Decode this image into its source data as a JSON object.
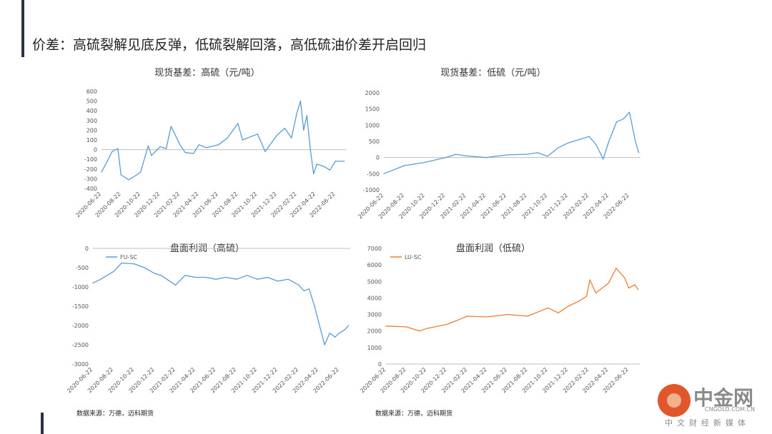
{
  "slide": {
    "title": "价差：高硫裂解见底反弹，低硫裂解回落，高低硫油价差开启回归"
  },
  "source_note": "数据来源：万德，迈科期货",
  "watermark": {
    "name": "中金网",
    "domain": "CNGOLD.COM.CN",
    "slogan": "中文财经新媒体"
  },
  "x_date_labels": [
    "2020-06-22",
    "2020-08-22",
    "2020-10-22",
    "2020-12-22",
    "2021-02-22",
    "2021-04-22",
    "2021-06-22",
    "2021-08-22",
    "2021-10-22",
    "2021-12-22",
    "2022-02-22",
    "2022-04-22",
    "2022-06-22"
  ],
  "chart_data": [
    {
      "type": "line",
      "title": "现货基差：高硫（元/吨）",
      "ylim": [
        -400,
        600
      ],
      "yticks": [
        -400,
        -300,
        -200,
        -100,
        0,
        100,
        200,
        300,
        400,
        500,
        600
      ],
      "color": "#5b9bd5",
      "series": [
        {
          "name": "",
          "x": [
            "2020-06-22",
            "2020-07-10",
            "2020-07-25",
            "2020-08-12",
            "2020-08-22",
            "2020-09-15",
            "2020-10-10",
            "2020-10-22",
            "2020-11-15",
            "2020-11-25",
            "2020-12-22",
            "2021-01-10",
            "2021-01-25",
            "2021-02-22",
            "2021-03-10",
            "2021-04-05",
            "2021-04-22",
            "2021-05-15",
            "2021-06-22",
            "2021-07-20",
            "2021-08-22",
            "2021-09-05",
            "2021-10-22",
            "2021-11-15",
            "2021-12-22",
            "2022-01-15",
            "2022-02-05",
            "2022-02-22",
            "2022-03-05",
            "2022-03-15",
            "2022-03-25",
            "2022-04-05",
            "2022-04-15",
            "2022-04-25",
            "2022-05-15",
            "2022-06-05",
            "2022-06-22",
            "2022-07-20"
          ],
          "values": [
            -230,
            -120,
            -20,
            10,
            -260,
            -310,
            -260,
            -230,
            40,
            -60,
            30,
            10,
            240,
            50,
            -30,
            -40,
            50,
            20,
            50,
            120,
            270,
            100,
            160,
            -20,
            150,
            220,
            120,
            380,
            500,
            200,
            350,
            0,
            -250,
            -150,
            -170,
            -210,
            -120,
            -120
          ]
        }
      ]
    },
    {
      "type": "line",
      "title": "现货基差：低硫（元/吨）",
      "ylim": [
        -1000,
        2000
      ],
      "yticks": [
        -1000,
        -500,
        0,
        500,
        1000,
        1500,
        2000
      ],
      "color": "#5b9bd5",
      "series": [
        {
          "name": "",
          "x": [
            "2020-06-22",
            "2020-08-22",
            "2020-10-22",
            "2020-12-22",
            "2021-01-22",
            "2021-02-22",
            "2021-04-22",
            "2021-06-22",
            "2021-08-22",
            "2021-09-22",
            "2021-10-22",
            "2021-11-22",
            "2021-12-22",
            "2022-01-22",
            "2022-02-22",
            "2022-03-15",
            "2022-04-05",
            "2022-04-22",
            "2022-05-15",
            "2022-06-05",
            "2022-06-22",
            "2022-07-10",
            "2022-07-20"
          ],
          "values": [
            -500,
            -250,
            -150,
            0,
            100,
            50,
            0,
            80,
            100,
            150,
            40,
            300,
            450,
            550,
            650,
            400,
            -50,
            500,
            1100,
            1200,
            1400,
            500,
            150
          ]
        }
      ]
    },
    {
      "type": "line",
      "title": "盘面利润（高硫）",
      "ylim": [
        -3000,
        0
      ],
      "yticks": [
        -3000,
        -2500,
        -2000,
        -1500,
        -1000,
        -500,
        0
      ],
      "color": "#5b9bd5",
      "legend": "top-left",
      "series": [
        {
          "name": "FU-SC",
          "x": [
            "2020-06-22",
            "2020-07-15",
            "2020-08-22",
            "2020-09-15",
            "2020-10-22",
            "2020-11-22",
            "2020-12-22",
            "2021-01-10",
            "2021-02-22",
            "2021-03-22",
            "2021-04-22",
            "2021-05-22",
            "2021-06-22",
            "2021-07-22",
            "2021-08-22",
            "2021-09-22",
            "2021-10-22",
            "2021-11-22",
            "2021-12-22",
            "2022-01-22",
            "2022-02-22",
            "2022-03-10",
            "2022-03-25",
            "2022-04-10",
            "2022-04-22",
            "2022-05-10",
            "2022-05-25",
            "2022-06-10",
            "2022-06-22",
            "2022-07-10",
            "2022-07-20"
          ],
          "values": [
            -900,
            -800,
            -600,
            -380,
            -400,
            -500,
            -650,
            -700,
            -950,
            -700,
            -750,
            -750,
            -800,
            -750,
            -800,
            -700,
            -800,
            -750,
            -850,
            -800,
            -950,
            -1100,
            -1050,
            -1500,
            -1900,
            -2500,
            -2200,
            -2300,
            -2200,
            -2100,
            -2000
          ]
        }
      ]
    },
    {
      "type": "line",
      "title": "盘面利润（低硫）",
      "ylim": [
        0,
        7000
      ],
      "yticks": [
        0,
        1000,
        2000,
        3000,
        4000,
        5000,
        6000,
        7000
      ],
      "color": "#ed7d31",
      "legend": "top-left",
      "series": [
        {
          "name": "LU-SC",
          "x": [
            "2020-06-22",
            "2020-08-22",
            "2020-10-01",
            "2020-10-22",
            "2020-12-22",
            "2021-02-22",
            "2021-04-22",
            "2021-06-22",
            "2021-08-22",
            "2021-10-22",
            "2021-11-22",
            "2021-12-22",
            "2022-01-22",
            "2022-02-15",
            "2022-02-25",
            "2022-03-15",
            "2022-04-22",
            "2022-05-15",
            "2022-06-10",
            "2022-06-22",
            "2022-07-10",
            "2022-07-20"
          ],
          "values": [
            2300,
            2250,
            2000,
            2150,
            2400,
            2900,
            2850,
            3000,
            2900,
            3400,
            3100,
            3500,
            3800,
            4100,
            5100,
            4300,
            4900,
            5800,
            5200,
            4600,
            4800,
            4500
          ]
        }
      ]
    }
  ]
}
